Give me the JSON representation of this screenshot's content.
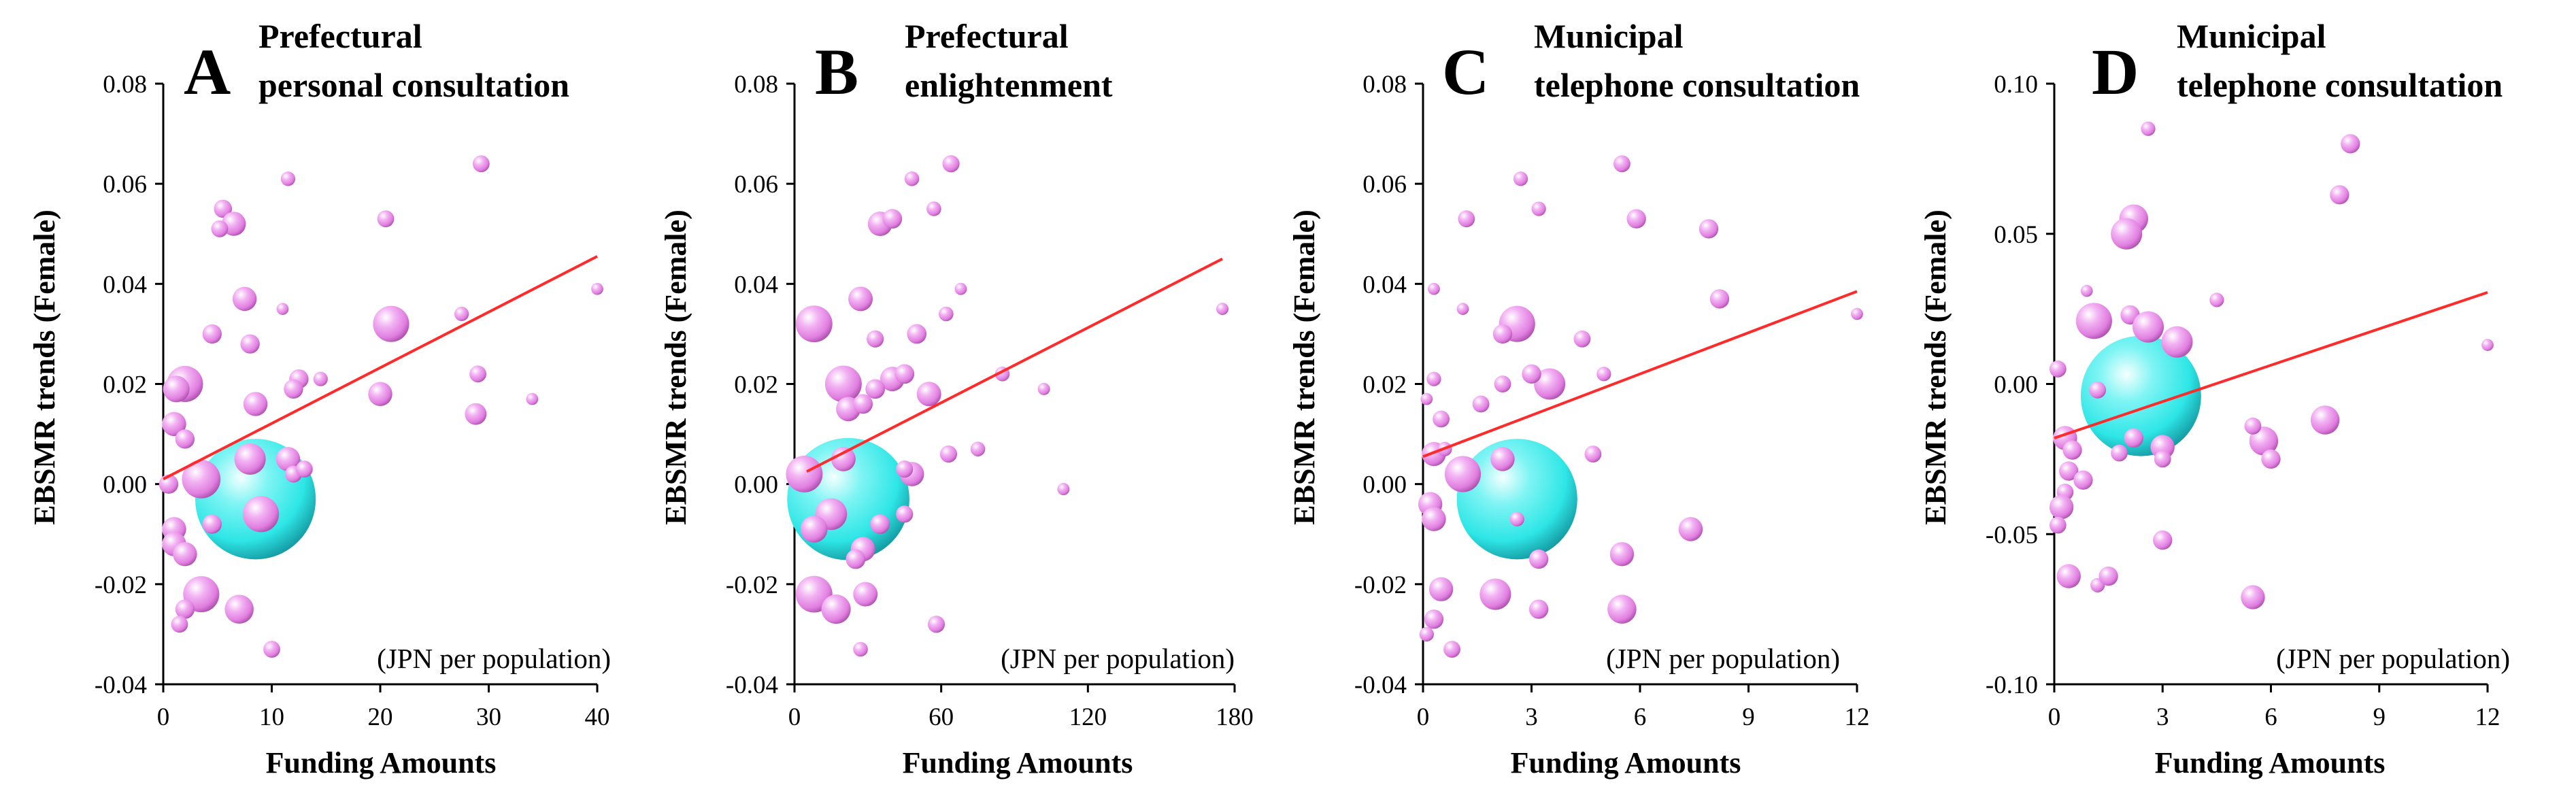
{
  "colors": {
    "bubble": "#e07ee0",
    "big_bubble": "#2ee6e6",
    "trend": "#ff2a2a",
    "axis": "#000000"
  },
  "chart_data": [
    {
      "type": "scatter",
      "panel": "A",
      "title_lines": [
        "Prefectural",
        "personal consultation"
      ],
      "xlabel": "Funding Amounts",
      "ylabel": "EBSMR trends (Female)",
      "unit_note": "(JPN per population)",
      "xlim": [
        0,
        40
      ],
      "xticks": [
        0,
        10,
        20,
        30,
        40
      ],
      "ylim": [
        -0.04,
        0.08
      ],
      "ytick_values": [
        -0.04,
        -0.02,
        0.0,
        0.02,
        0.04,
        0.06,
        0.08
      ],
      "ytick_labels": [
        "-0.04",
        "-0.02",
        "0.00",
        "0.02",
        "0.04",
        "0.06",
        "0.08"
      ],
      "trend": [
        [
          0,
          0.001
        ],
        [
          40,
          0.0455
        ]
      ],
      "big_bubble": {
        "x": 8.5,
        "y": -0.003,
        "size": 10
      },
      "points": [
        [
          11.5,
          0.061,
          1.2
        ],
        [
          5.5,
          0.055,
          1.5
        ],
        [
          6.5,
          0.052,
          2
        ],
        [
          5.2,
          0.051,
          1.4
        ],
        [
          29.3,
          0.064,
          1.4
        ],
        [
          20.5,
          0.053,
          1.4
        ],
        [
          7.5,
          0.037,
          2
        ],
        [
          11,
          0.035,
          1
        ],
        [
          4.5,
          0.03,
          1.6
        ],
        [
          8,
          0.028,
          1.6
        ],
        [
          21,
          0.032,
          3
        ],
        [
          27.5,
          0.034,
          1.2
        ],
        [
          2,
          0.02,
          3
        ],
        [
          1.2,
          0.019,
          2.2
        ],
        [
          12.5,
          0.021,
          1.6
        ],
        [
          14.5,
          0.021,
          1.2
        ],
        [
          20,
          0.018,
          2
        ],
        [
          29,
          0.022,
          1.4
        ],
        [
          34,
          0.017,
          1
        ],
        [
          40,
          0.039,
          1
        ],
        [
          1,
          0.012,
          2
        ],
        [
          8.5,
          0.016,
          2
        ],
        [
          2,
          0.009,
          1.6
        ],
        [
          28.8,
          0.014,
          1.8
        ],
        [
          12,
          0.019,
          1.6
        ],
        [
          3.5,
          0.001,
          3.2
        ],
        [
          8,
          0.005,
          2.6
        ],
        [
          11.5,
          0.005,
          2
        ],
        [
          0.5,
          0.0,
          1.6
        ],
        [
          12,
          0.002,
          1.4
        ],
        [
          13,
          0.003,
          1.4
        ],
        [
          9,
          -0.006,
          3
        ],
        [
          1,
          -0.009,
          2
        ],
        [
          4.5,
          -0.008,
          1.6
        ],
        [
          1,
          -0.012,
          2
        ],
        [
          2,
          -0.014,
          2
        ],
        [
          3.5,
          -0.022,
          3
        ],
        [
          7,
          -0.025,
          2.4
        ],
        [
          2,
          -0.025,
          1.6
        ],
        [
          1.5,
          -0.028,
          1.4
        ],
        [
          10,
          -0.033,
          1.4
        ]
      ]
    },
    {
      "type": "scatter",
      "panel": "B",
      "title_lines": [
        "Prefectural",
        "enlightenment"
      ],
      "xlabel": "Funding Amounts",
      "ylabel": "EBSMR trends (Female)",
      "unit_note": "(JPN per population)",
      "xlim": [
        0,
        180
      ],
      "xticks": [
        0,
        60,
        120,
        180
      ],
      "ylim": [
        -0.04,
        0.08
      ],
      "ytick_values": [
        -0.04,
        -0.02,
        0.0,
        0.02,
        0.04,
        0.06,
        0.08
      ],
      "ytick_labels": [
        "-0.04",
        "-0.02",
        "0.00",
        "0.02",
        "0.04",
        "0.06",
        "0.08"
      ],
      "trend": [
        [
          5,
          0.0025
        ],
        [
          175,
          0.045
        ]
      ],
      "big_bubble": {
        "x": 22,
        "y": -0.003,
        "size": 10
      },
      "points": [
        [
          48,
          0.061,
          1.2
        ],
        [
          64,
          0.064,
          1.4
        ],
        [
          35,
          0.052,
          2
        ],
        [
          40,
          0.053,
          1.6
        ],
        [
          57,
          0.055,
          1.2
        ],
        [
          27,
          0.037,
          2
        ],
        [
          8,
          0.032,
          3
        ],
        [
          50,
          0.03,
          1.6
        ],
        [
          33,
          0.029,
          1.4
        ],
        [
          68,
          0.039,
          1
        ],
        [
          175,
          0.035,
          1
        ],
        [
          62,
          0.034,
          1.2
        ],
        [
          20,
          0.02,
          3
        ],
        [
          40,
          0.021,
          2
        ],
        [
          45,
          0.022,
          1.6
        ],
        [
          33,
          0.019,
          1.6
        ],
        [
          55,
          0.018,
          2
        ],
        [
          85,
          0.022,
          1.2
        ],
        [
          102,
          0.019,
          1
        ],
        [
          22,
          0.015,
          2
        ],
        [
          28,
          0.016,
          1.6
        ],
        [
          4,
          0.002,
          3
        ],
        [
          20,
          0.005,
          2
        ],
        [
          48,
          0.002,
          2
        ],
        [
          45,
          0.003,
          1.4
        ],
        [
          63,
          0.006,
          1.4
        ],
        [
          75,
          0.007,
          1.2
        ],
        [
          110,
          -0.001,
          1
        ],
        [
          15,
          -0.006,
          2.6
        ],
        [
          8,
          -0.009,
          2.2
        ],
        [
          35,
          -0.008,
          1.6
        ],
        [
          45,
          -0.006,
          1.4
        ],
        [
          28,
          -0.013,
          2
        ],
        [
          25,
          -0.015,
          1.6
        ],
        [
          8,
          -0.022,
          3
        ],
        [
          17,
          -0.025,
          2.4
        ],
        [
          29,
          -0.022,
          2
        ],
        [
          58,
          -0.028,
          1.4
        ],
        [
          27,
          -0.033,
          1.2
        ]
      ]
    },
    {
      "type": "scatter",
      "panel": "C",
      "title_lines": [
        "Municipal",
        "telephone consultation"
      ],
      "xlabel": "Funding Amounts",
      "ylabel": "EBSMR trends (Female)",
      "unit_note": "(JPN per population)",
      "xlim": [
        0,
        12
      ],
      "xticks": [
        0,
        3,
        6,
        9,
        12
      ],
      "ylim": [
        -0.04,
        0.08
      ],
      "ytick_values": [
        -0.04,
        -0.02,
        0.0,
        0.02,
        0.04,
        0.06,
        0.08
      ],
      "ytick_labels": [
        "-0.04",
        "-0.02",
        "0.00",
        "0.02",
        "0.04",
        "0.06",
        "0.08"
      ],
      "trend": [
        [
          0,
          0.0055
        ],
        [
          12,
          0.0385
        ]
      ],
      "big_bubble": {
        "x": 2.6,
        "y": -0.003,
        "size": 10
      },
      "points": [
        [
          5.5,
          0.064,
          1.4
        ],
        [
          2.7,
          0.061,
          1.2
        ],
        [
          1.2,
          0.053,
          1.4
        ],
        [
          5.9,
          0.053,
          1.6
        ],
        [
          3.2,
          0.055,
          1.2
        ],
        [
          7.9,
          0.051,
          1.6
        ],
        [
          0.3,
          0.039,
          1
        ],
        [
          8.2,
          0.037,
          1.6
        ],
        [
          2.6,
          0.032,
          3
        ],
        [
          4.4,
          0.029,
          1.4
        ],
        [
          1.1,
          0.035,
          1
        ],
        [
          12,
          0.034,
          1
        ],
        [
          2.2,
          0.03,
          1.6
        ],
        [
          3.5,
          0.02,
          2.6
        ],
        [
          3,
          0.022,
          1.6
        ],
        [
          2.2,
          0.02,
          1.4
        ],
        [
          0.3,
          0.021,
          1.2
        ],
        [
          0.1,
          0.017,
          1
        ],
        [
          1.6,
          0.016,
          1.4
        ],
        [
          5,
          0.022,
          1.2
        ],
        [
          0.5,
          0.013,
          1.4
        ],
        [
          0.3,
          0.006,
          2
        ],
        [
          1.1,
          0.002,
          3
        ],
        [
          2.2,
          0.005,
          2
        ],
        [
          4.7,
          0.006,
          1.4
        ],
        [
          0.6,
          0.007,
          1.2
        ],
        [
          0.2,
          -0.004,
          2
        ],
        [
          0.3,
          -0.007,
          2
        ],
        [
          2.6,
          -0.007,
          1.2
        ],
        [
          3.2,
          -0.015,
          1.6
        ],
        [
          7.4,
          -0.009,
          2
        ],
        [
          5.5,
          -0.014,
          2
        ],
        [
          0.5,
          -0.021,
          2
        ],
        [
          2,
          -0.022,
          2.6
        ],
        [
          0.3,
          -0.027,
          1.6
        ],
        [
          3.2,
          -0.025,
          1.6
        ],
        [
          5.5,
          -0.025,
          2.4
        ],
        [
          0.8,
          -0.033,
          1.4
        ],
        [
          0.1,
          -0.03,
          1.2
        ]
      ]
    },
    {
      "type": "scatter",
      "panel": "D",
      "title_lines": [
        "Municipal",
        "telephone consultation"
      ],
      "xlabel": "Funding Amounts",
      "ylabel": "EBSMR trends (Female)",
      "unit_note": "(JPN per population)",
      "xlim": [
        0,
        12
      ],
      "xticks": [
        0,
        3,
        6,
        9,
        12
      ],
      "ylim": [
        -0.1,
        0.1
      ],
      "ytick_values": [
        -0.1,
        -0.05,
        0.0,
        0.05,
        0.1
      ],
      "ytick_labels": [
        "-0.10",
        "-0.05",
        "0.00",
        "0.05",
        "0.10"
      ],
      "trend": [
        [
          0,
          -0.018
        ],
        [
          12,
          0.0305
        ]
      ],
      "big_bubble": {
        "x": 2.4,
        "y": -0.004,
        "size": 10
      },
      "points": [
        [
          2.6,
          0.085,
          1.2
        ],
        [
          8.2,
          0.08,
          1.6
        ],
        [
          7.9,
          0.063,
          1.6
        ],
        [
          2.2,
          0.055,
          2.4
        ],
        [
          2,
          0.05,
          2.6
        ],
        [
          0.9,
          0.031,
          1
        ],
        [
          4.5,
          0.028,
          1.2
        ],
        [
          1.1,
          0.021,
          3
        ],
        [
          2.1,
          0.023,
          1.6
        ],
        [
          2.6,
          0.019,
          2.6
        ],
        [
          3.4,
          0.014,
          2.6
        ],
        [
          12,
          0.013,
          1
        ],
        [
          0.1,
          0.005,
          1.4
        ],
        [
          1.2,
          -0.002,
          1.4
        ],
        [
          0.3,
          -0.018,
          2
        ],
        [
          0.5,
          -0.022,
          1.6
        ],
        [
          2.2,
          -0.018,
          1.6
        ],
        [
          1.8,
          -0.023,
          1.4
        ],
        [
          3,
          -0.021,
          2
        ],
        [
          0.4,
          -0.029,
          1.6
        ],
        [
          0.8,
          -0.032,
          1.6
        ],
        [
          0.3,
          -0.036,
          1.4
        ],
        [
          0.2,
          -0.041,
          2
        ],
        [
          0.1,
          -0.047,
          1.4
        ],
        [
          3,
          -0.025,
          1.4
        ],
        [
          5.8,
          -0.019,
          2.4
        ],
        [
          6,
          -0.025,
          1.6
        ],
        [
          7.5,
          -0.012,
          2.4
        ],
        [
          5.5,
          -0.014,
          1.4
        ],
        [
          3,
          -0.052,
          1.6
        ],
        [
          0.4,
          -0.064,
          2
        ],
        [
          1.2,
          -0.067,
          1.2
        ],
        [
          1.5,
          -0.064,
          1.6
        ],
        [
          5.5,
          -0.071,
          2
        ]
      ]
    }
  ]
}
